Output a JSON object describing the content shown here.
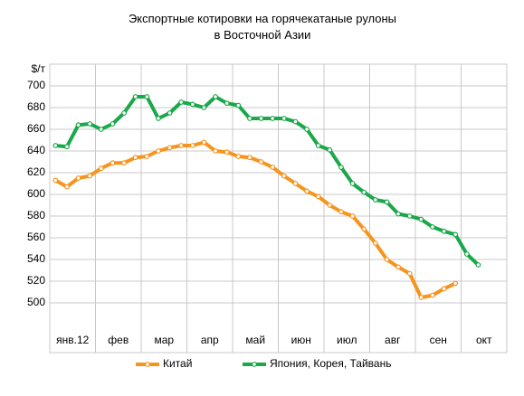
{
  "chart_data": {
    "type": "line",
    "title": "Экспортные котировки на горячекатаные рулоны в Восточной Азии",
    "y_label": "$/т",
    "categories": [
      "янв.12",
      null,
      null,
      null,
      "фев",
      null,
      null,
      null,
      "мар",
      null,
      null,
      null,
      "апр",
      null,
      null,
      null,
      "май",
      null,
      null,
      null,
      "июн",
      null,
      null,
      null,
      "июл",
      null,
      null,
      null,
      "авг",
      null,
      null,
      null,
      "сен",
      null,
      null,
      null,
      "окт",
      null,
      null,
      null
    ],
    "series": [
      {
        "name": "Китай",
        "color": "#f7941d",
        "values": [
          613,
          607,
          615,
          617,
          624,
          629,
          629,
          634,
          635,
          640,
          643,
          645,
          645,
          648,
          640,
          639,
          635,
          634,
          630,
          625,
          617,
          610,
          603,
          598,
          590,
          584,
          580,
          568,
          555,
          540,
          533,
          527,
          505,
          507,
          513,
          518,
          null,
          null,
          null,
          null
        ]
      },
      {
        "name": "Япония, Корея, Тайвань",
        "color": "#1aa84a",
        "values": [
          645,
          644,
          664,
          665,
          660,
          665,
          675,
          690,
          690,
          670,
          675,
          685,
          683,
          680,
          690,
          684,
          682,
          670,
          670,
          670,
          670,
          667,
          660,
          645,
          641,
          625,
          610,
          602,
          595,
          593,
          582,
          580,
          577,
          570,
          566,
          563,
          545,
          535,
          null,
          null
        ]
      }
    ],
    "ylim": [
      500,
      720
    ],
    "yticks": [
      500,
      520,
      540,
      560,
      580,
      600,
      620,
      640,
      660,
      680,
      700
    ],
    "grid": true,
    "legend": "bottom"
  }
}
